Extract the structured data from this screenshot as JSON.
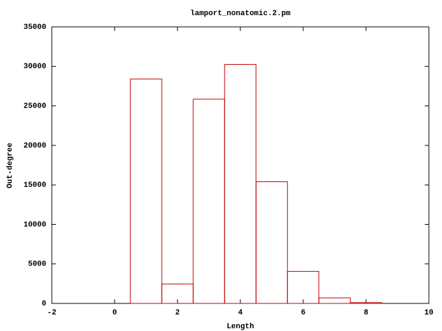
{
  "chart_data": {
    "type": "histogram",
    "title": "lamport_nonatomic.2.pm",
    "x_label": "Length",
    "y_label": "Out-degree",
    "bins": [
      0.5,
      1.5,
      2.5,
      3.5,
      4.5,
      5.5,
      6.5,
      7.5,
      8.5
    ],
    "values": [
      28400,
      2450,
      25850,
      30250,
      15400,
      4050,
      700,
      100
    ],
    "color": "#c00000",
    "xlim": [
      -2,
      10
    ],
    "xticks": [
      -2,
      0,
      2,
      4,
      6,
      8,
      10
    ],
    "ylim": [
      0,
      35000
    ],
    "yticks": [
      0,
      5000,
      10000,
      15000,
      20000,
      25000,
      30000,
      35000
    ],
    "grid": false
  }
}
